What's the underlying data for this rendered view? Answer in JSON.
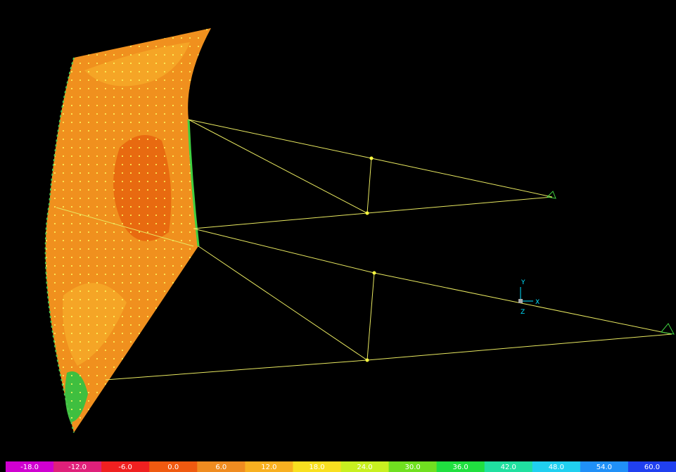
{
  "axes": {
    "y": "Y",
    "x": "X",
    "z": "Z"
  },
  "legend": {
    "labels": [
      "-18.0",
      "-12.0",
      "-6.0",
      "0.0",
      "6.0",
      "12.0",
      "18.0",
      "24.0",
      "30.0",
      "36.0",
      "42.0",
      "48.0",
      "54.0",
      "60.0"
    ]
  }
}
